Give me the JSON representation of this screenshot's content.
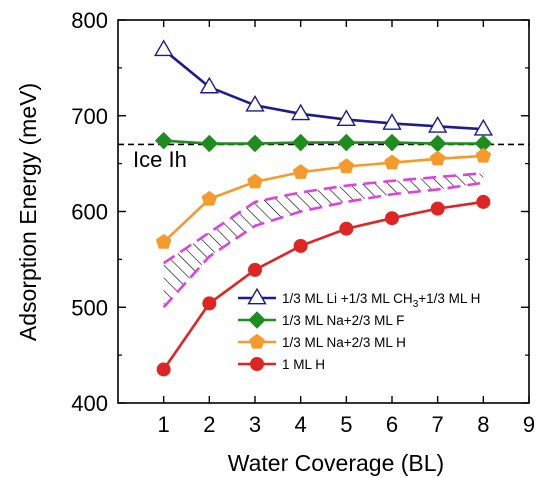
{
  "chart_data": {
    "type": "line",
    "xlabel": "Water Coverage (BL)",
    "ylabel": "Adsorption Energy (meV)",
    "xlim": [
      0,
      9
    ],
    "ylim": [
      400,
      800
    ],
    "xticks": [
      1,
      2,
      3,
      4,
      5,
      6,
      7,
      8,
      9
    ],
    "yticks": [
      400,
      500,
      600,
      700,
      800
    ],
    "grid": false,
    "legend_position": "bottom-right",
    "reference_line": {
      "label": "Ice Ih",
      "y": 670,
      "style": "dashed",
      "color": "#000000"
    },
    "band": {
      "style": "hatched",
      "color": "#000000",
      "boundary_color": "#e040e0",
      "x": [
        1,
        2,
        3,
        4,
        5,
        6,
        7,
        8
      ],
      "upper": [
        546,
        578,
        610,
        620,
        627,
        632,
        636,
        640
      ],
      "lower": [
        500,
        553,
        585,
        600,
        610,
        618,
        623,
        630
      ]
    },
    "series": [
      {
        "name": "1/3 ML Li +1/3 ML CH",
        "name_sub": "3",
        "name_tail": "+1/3 ML H",
        "color": "#1c1c8c",
        "marker": "triangle-open",
        "x": [
          1,
          2,
          3,
          4,
          5,
          6,
          7,
          8
        ],
        "y": [
          769,
          730,
          711,
          702,
          696,
          692,
          689,
          686
        ]
      },
      {
        "name": "1/3 ML Na+2/3 ML F",
        "color": "#1e8c1e",
        "marker": "diamond",
        "x": [
          1,
          2,
          3,
          4,
          5,
          6,
          7,
          8
        ],
        "y": [
          674,
          671,
          671,
          672,
          672,
          672,
          671,
          671
        ]
      },
      {
        "name": "1/3 ML Na+2/3 ML H",
        "color": "#f59a2b",
        "marker": "pentagon",
        "x": [
          1,
          2,
          3,
          4,
          5,
          6,
          7,
          8
        ],
        "y": [
          568,
          613,
          631,
          641,
          647,
          651,
          655,
          658
        ]
      },
      {
        "name": "1 ML H",
        "color": "#e02424",
        "marker": "circle",
        "x": [
          1,
          2,
          3,
          4,
          5,
          6,
          7,
          8
        ],
        "y": [
          435,
          504,
          539,
          564,
          582,
          593,
          603,
          610
        ]
      }
    ]
  }
}
